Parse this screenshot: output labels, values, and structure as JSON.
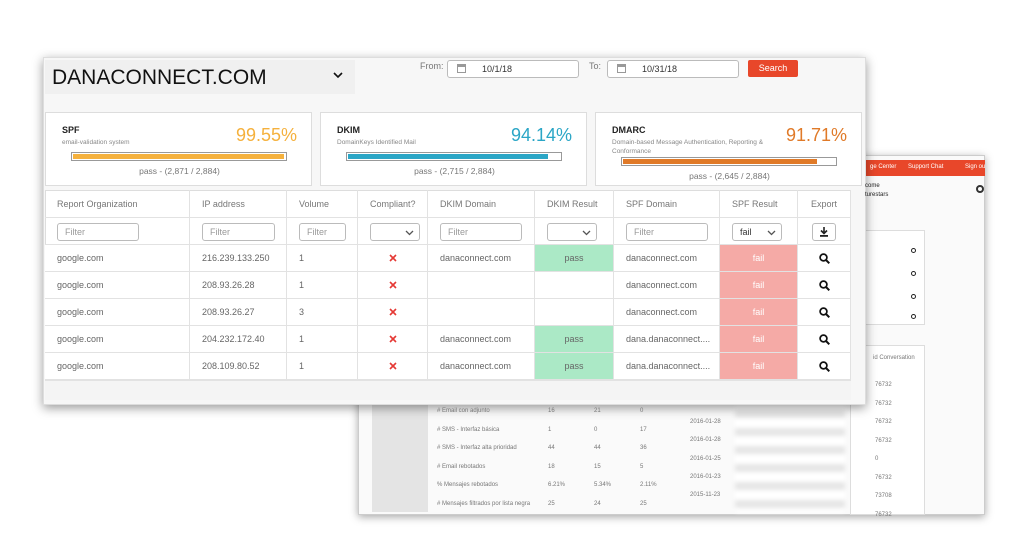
{
  "header": {
    "title": "DANACONNECT.COM",
    "from_label": "From:",
    "from_date": "10/1/18",
    "to_label": "To:",
    "to_date": "10/31/18",
    "search_button": "Search"
  },
  "metrics": [
    {
      "name": "SPF",
      "description": "email-validation system",
      "value": 99.55,
      "value_label": "99.55%",
      "summary": "pass - (2,871 / 2,884)",
      "color": "#f5b13d"
    },
    {
      "name": "DKIM",
      "description": "DomainKeys Identified Mail",
      "value": 94.14,
      "value_label": "94.14%",
      "summary": "pass - (2,715 / 2,884)",
      "color": "#2ba6c6"
    },
    {
      "name": "DMARC",
      "description": "Domain-based Message Authentication, Reporting & Conformance",
      "value": 91.71,
      "value_label": "91.71%",
      "summary": "pass - (2,645 / 2,884)",
      "color": "#e07a28"
    }
  ],
  "table": {
    "columns": [
      "Report Organization",
      "IP address",
      "Volume",
      "Compliant?",
      "DKIM Domain",
      "DKIM Result",
      "SPF Domain",
      "SPF Result",
      "Export"
    ],
    "filter_placeholder": "Filter",
    "spf_filter": "fail",
    "rows": [
      {
        "org": "google.com",
        "ip": "216.239.133.250",
        "volume": 1,
        "dkim_domain": "danaconnect.com",
        "dkim_result": "pass",
        "spf_domain": "danaconnect.com",
        "spf_result": "fail"
      },
      {
        "org": "google.com",
        "ip": "208.93.26.28",
        "volume": 1,
        "spf_domain": "danaconnect.com",
        "spf_result": "fail"
      },
      {
        "org": "google.com",
        "ip": "208.93.26.27",
        "volume": 3,
        "spf_domain": "danaconnect.com",
        "spf_result": "fail"
      },
      {
        "org": "google.com",
        "ip": "204.232.172.40",
        "volume": 1,
        "dkim_domain": "danaconnect.com",
        "dkim_result": "pass",
        "spf_domain": "dana.danaconnect....",
        "spf_result": "fail"
      },
      {
        "org": "google.com",
        "ip": "208.109.80.52",
        "volume": 1,
        "dkim_domain": "danaconnect.com",
        "dkim_result": "pass",
        "spf_domain": "dana.danaconnect....",
        "spf_result": "fail"
      }
    ]
  },
  "background": {
    "top_bar": [
      "ge Center",
      "Support Chat",
      "Sign ou"
    ],
    "welcome": [
      "come",
      "turestars"
    ],
    "conversation_header": "id Conversation",
    "stats_rows": [
      [
        "# Email con adjunto",
        "16",
        "21",
        "0"
      ],
      [
        "# SMS - Interfaz básica",
        "1",
        "0",
        "17"
      ],
      [
        "# SMS - Interfaz alta prioridad",
        "44",
        "44",
        "36"
      ],
      [
        "# Email rebotados",
        "18",
        "15",
        "5"
      ],
      [
        "% Mensajes rebotados",
        "6.21%",
        "5.34%",
        "2.11%"
      ],
      [
        "# Mensajes filtrados por lista negra",
        "25",
        "24",
        "25"
      ]
    ],
    "dates": [
      "2016-01-28",
      "2016-01-28",
      "2016-01-25",
      "2016-01-23",
      "2015-11-23"
    ],
    "conversation_ids": [
      "76732",
      "76732",
      "76732",
      "76732",
      "0",
      "76732",
      "73708",
      "76732"
    ]
  }
}
